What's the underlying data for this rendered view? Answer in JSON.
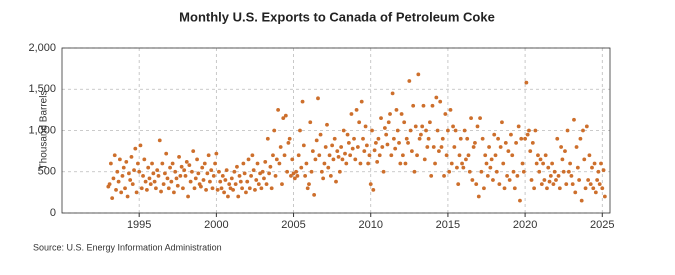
{
  "chart_data": {
    "type": "scatter",
    "title": "Monthly U.S. Exports to Canada of Petroleum Coke",
    "y_label": "Thousand Barrels",
    "source": "Source: U.S. Energy Information Administration",
    "series": [
      {
        "name": "Exports",
        "color": "#cd6f2c",
        "x": [
          "1993-01",
          "1993-02",
          "1993-03",
          "1993-04",
          "1993-05",
          "1993-06",
          "1993-07",
          "1993-08",
          "1993-09",
          "1993-10",
          "1993-11",
          "1993-12",
          "1994-01",
          "1994-02",
          "1994-03",
          "1994-04",
          "1994-05",
          "1994-06",
          "1994-07",
          "1994-08",
          "1994-09",
          "1994-10",
          "1994-11",
          "1994-12",
          "1995-01",
          "1995-02",
          "1995-03",
          "1995-04",
          "1995-05",
          "1995-06",
          "1995-07",
          "1995-08",
          "1995-09",
          "1995-10",
          "1995-11",
          "1995-12",
          "1996-01",
          "1996-02",
          "1996-03",
          "1996-04",
          "1996-05",
          "1996-06",
          "1996-07",
          "1996-08",
          "1996-09",
          "1996-10",
          "1996-11",
          "1996-12",
          "1997-01",
          "1997-02",
          "1997-03",
          "1997-04",
          "1997-05",
          "1997-06",
          "1997-07",
          "1997-08",
          "1997-09",
          "1997-10",
          "1997-11",
          "1997-12",
          "1998-01",
          "1998-02",
          "1998-03",
          "1998-04",
          "1998-05",
          "1998-06",
          "1998-07",
          "1998-08",
          "1998-09",
          "1998-10",
          "1998-11",
          "1998-12",
          "1999-01",
          "1999-02",
          "1999-03",
          "1999-04",
          "1999-05",
          "1999-06",
          "1999-07",
          "1999-08",
          "1999-09",
          "1999-10",
          "1999-11",
          "1999-12",
          "2000-01",
          "2000-02",
          "2000-03",
          "2000-04",
          "2000-05",
          "2000-06",
          "2000-07",
          "2000-08",
          "2000-09",
          "2000-10",
          "2000-11",
          "2000-12",
          "2001-01",
          "2001-02",
          "2001-03",
          "2001-04",
          "2001-05",
          "2001-06",
          "2001-07",
          "2001-08",
          "2001-09",
          "2001-10",
          "2001-11",
          "2001-12",
          "2002-01",
          "2002-02",
          "2002-03",
          "2002-04",
          "2002-05",
          "2002-06",
          "2002-07",
          "2002-08",
          "2002-09",
          "2002-10",
          "2002-11",
          "2002-12",
          "2003-01",
          "2003-02",
          "2003-03",
          "2003-04",
          "2003-05",
          "2003-06",
          "2003-07",
          "2003-08",
          "2003-09",
          "2003-10",
          "2003-11",
          "2003-12",
          "2004-01",
          "2004-02",
          "2004-03",
          "2004-04",
          "2004-05",
          "2004-06",
          "2004-07",
          "2004-08",
          "2004-09",
          "2004-10",
          "2004-11",
          "2004-12",
          "2005-01",
          "2005-02",
          "2005-03",
          "2005-04",
          "2005-05",
          "2005-06",
          "2005-07",
          "2005-08",
          "2005-09",
          "2005-10",
          "2005-11",
          "2005-12",
          "2006-01",
          "2006-02",
          "2006-03",
          "2006-04",
          "2006-05",
          "2006-06",
          "2006-07",
          "2006-08",
          "2006-09",
          "2006-10",
          "2006-11",
          "2006-12",
          "2007-01",
          "2007-02",
          "2007-03",
          "2007-04",
          "2007-05",
          "2007-06",
          "2007-07",
          "2007-08",
          "2007-09",
          "2007-10",
          "2007-11",
          "2007-12",
          "2008-01",
          "2008-02",
          "2008-03",
          "2008-04",
          "2008-05",
          "2008-06",
          "2008-07",
          "2008-08",
          "2008-09",
          "2008-10",
          "2008-11",
          "2008-12",
          "2009-01",
          "2009-02",
          "2009-03",
          "2009-04",
          "2009-05",
          "2009-06",
          "2009-07",
          "2009-08",
          "2009-09",
          "2009-10",
          "2009-11",
          "2009-12",
          "2010-01",
          "2010-02",
          "2010-03",
          "2010-04",
          "2010-05",
          "2010-06",
          "2010-07",
          "2010-08",
          "2010-09",
          "2010-10",
          "2010-11",
          "2010-12",
          "2011-01",
          "2011-02",
          "2011-03",
          "2011-04",
          "2011-05",
          "2011-06",
          "2011-07",
          "2011-08",
          "2011-09",
          "2011-10",
          "2011-11",
          "2011-12",
          "2012-01",
          "2012-02",
          "2012-03",
          "2012-04",
          "2012-05",
          "2012-06",
          "2012-07",
          "2012-08",
          "2012-09",
          "2012-10",
          "2012-11",
          "2012-12",
          "2013-01",
          "2013-02",
          "2013-03",
          "2013-04",
          "2013-05",
          "2013-06",
          "2013-07",
          "2013-08",
          "2013-09",
          "2013-10",
          "2013-11",
          "2013-12",
          "2014-01",
          "2014-02",
          "2014-03",
          "2014-04",
          "2014-05",
          "2014-06",
          "2014-07",
          "2014-08",
          "2014-09",
          "2014-10",
          "2014-11",
          "2014-12",
          "2015-01",
          "2015-02",
          "2015-03",
          "2015-04",
          "2015-05",
          "2015-06",
          "2015-07",
          "2015-08",
          "2015-09",
          "2015-10",
          "2015-11",
          "2015-12",
          "2016-01",
          "2016-02",
          "2016-03",
          "2016-04",
          "2016-05",
          "2016-06",
          "2016-07",
          "2016-08",
          "2016-09",
          "2016-10",
          "2016-11",
          "2016-12",
          "2017-01",
          "2017-02",
          "2017-03",
          "2017-04",
          "2017-05",
          "2017-06",
          "2017-07",
          "2017-08",
          "2017-09",
          "2017-10",
          "2017-11",
          "2017-12",
          "2018-01",
          "2018-02",
          "2018-03",
          "2018-04",
          "2018-05",
          "2018-06",
          "2018-07",
          "2018-08",
          "2018-09",
          "2018-10",
          "2018-11",
          "2018-12",
          "2019-01",
          "2019-02",
          "2019-03",
          "2019-04",
          "2019-05",
          "2019-06",
          "2019-07",
          "2019-08",
          "2019-09",
          "2019-10",
          "2019-11",
          "2019-12",
          "2020-01",
          "2020-02",
          "2020-03",
          "2020-04",
          "2020-05",
          "2020-06",
          "2020-07",
          "2020-08",
          "2020-09",
          "2020-10",
          "2020-11",
          "2020-12",
          "2021-01",
          "2021-02",
          "2021-03",
          "2021-04",
          "2021-05",
          "2021-06",
          "2021-07",
          "2021-08",
          "2021-09",
          "2021-10",
          "2021-11",
          "2021-12",
          "2022-01",
          "2022-02",
          "2022-03",
          "2022-04",
          "2022-05",
          "2022-06",
          "2022-07",
          "2022-08",
          "2022-09",
          "2022-10",
          "2022-11",
          "2022-12",
          "2023-01",
          "2023-02",
          "2023-03",
          "2023-04",
          "2023-05",
          "2023-06",
          "2023-07",
          "2023-08",
          "2023-09",
          "2023-10",
          "2023-11",
          "2023-12",
          "2024-01",
          "2024-02",
          "2024-03",
          "2024-04",
          "2024-05",
          "2024-06",
          "2024-07",
          "2024-08",
          "2024-09",
          "2024-10",
          "2024-11",
          "2024-12",
          "2025-01",
          "2025-02",
          "2025-03"
        ],
        "values": [
          320,
          350,
          600,
          180,
          420,
          700,
          280,
          500,
          380,
          650,
          250,
          450,
          550,
          300,
          620,
          200,
          480,
          400,
          680,
          350,
          520,
          780,
          250,
          600,
          500,
          820,
          300,
          450,
          650,
          380,
          280,
          550,
          420,
          350,
          600,
          480,
          380,
          300,
          520,
          450,
          880,
          260,
          600,
          350,
          480,
          720,
          420,
          300,
          550,
          380,
          600,
          250,
          500,
          420,
          330,
          680,
          450,
          560,
          300,
          520,
          450,
          620,
          200,
          580,
          380,
          500,
          750,
          300,
          420,
          650,
          480,
          350,
          320,
          550,
          400,
          600,
          280,
          480,
          700,
          380,
          520,
          300,
          450,
          600,
          720,
          280,
          500,
          380,
          300,
          450,
          250,
          400,
          520,
          200,
          350,
          300,
          420,
          280,
          500,
          350,
          560,
          200,
          450,
          380,
          300,
          600,
          480,
          250,
          380,
          650,
          300,
          450,
          700,
          520,
          280,
          400,
          600,
          350,
          480,
          300,
          500,
          420,
          620,
          350,
          900,
          480,
          560,
          300,
          700,
          1000,
          450,
          650,
          1250,
          600,
          800,
          350,
          1150,
          700,
          1180,
          500,
          850,
          900,
          450,
          650,
          480,
          420,
          500,
          450,
          700,
          1000,
          550,
          1350,
          820,
          450,
          600,
          300,
          350,
          1100,
          500,
          750,
          220,
          650,
          880,
          1390,
          700,
          950,
          500,
          420,
          600,
          800,
          1070,
          550,
          700,
          450,
          820,
          650,
          900,
          380,
          750,
          680,
          500,
          800,
          650,
          1000,
          720,
          600,
          950,
          850,
          700,
          1200,
          780,
          900,
          650,
          1250,
          800,
          1100,
          600,
          1350,
          900,
          750,
          1050,
          820,
          600,
          700,
          350,
          1000,
          280,
          760,
          850,
          620,
          900,
          700,
          1150,
          800,
          500,
          1030,
          950,
          830,
          1100,
          1200,
          700,
          1450,
          900,
          780,
          1250,
          1000,
          850,
          600,
          1200,
          700,
          1100,
          600,
          900,
          850,
          1600,
          1000,
          750,
          1300,
          500,
          1050,
          700,
          1680,
          900,
          950,
          1050,
          1300,
          650,
          1000,
          800,
          900,
          1100,
          450,
          1300,
          800,
          600,
          1400,
          1000,
          750,
          1350,
          800,
          900,
          450,
          1200,
          700,
          1000,
          500,
          1250,
          600,
          1050,
          800,
          1000,
          550,
          350,
          700,
          900,
          600,
          550,
          1000,
          650,
          900,
          700,
          500,
          1150,
          400,
          800,
          850,
          350,
          1050,
          200,
          1150,
          500,
          900,
          300,
          700,
          600,
          450,
          800,
          550,
          650,
          400,
          950,
          700,
          500,
          900,
          350,
          800,
          1100,
          600,
          300,
          850,
          450,
          750,
          400,
          950,
          700,
          500,
          300,
          850,
          450,
          1050,
          150,
          900,
          600,
          500,
          900,
          1580,
          950,
          1000,
          750,
          400,
          850,
          300,
          1000,
          600,
          700,
          500,
          650,
          350,
          600,
          400,
          700,
          300,
          550,
          380,
          450,
          600,
          350,
          500,
          400,
          900,
          450,
          300,
          800,
          650,
          500,
          750,
          350,
          1000,
          500,
          600,
          450,
          350,
          1130,
          250,
          800,
          550,
          400,
          900,
          150,
          1000,
          650,
          300,
          1050,
          400,
          700,
          350,
          550,
          300,
          600,
          250,
          400,
          500,
          350,
          600,
          300,
          520,
          200
        ]
      }
    ],
    "xlim": [
      1990,
      2025.5
    ],
    "xticks": [
      1995,
      2000,
      2005,
      2010,
      2015,
      2020,
      2025
    ],
    "ylim": [
      0,
      2000
    ],
    "yticks": [
      0,
      500,
      {
        "value": 1000,
        "label": "1,000"
      },
      {
        "value": 1500,
        "label": "1,500"
      },
      {
        "value": 2000,
        "label": "2,000"
      }
    ],
    "grid": true
  }
}
